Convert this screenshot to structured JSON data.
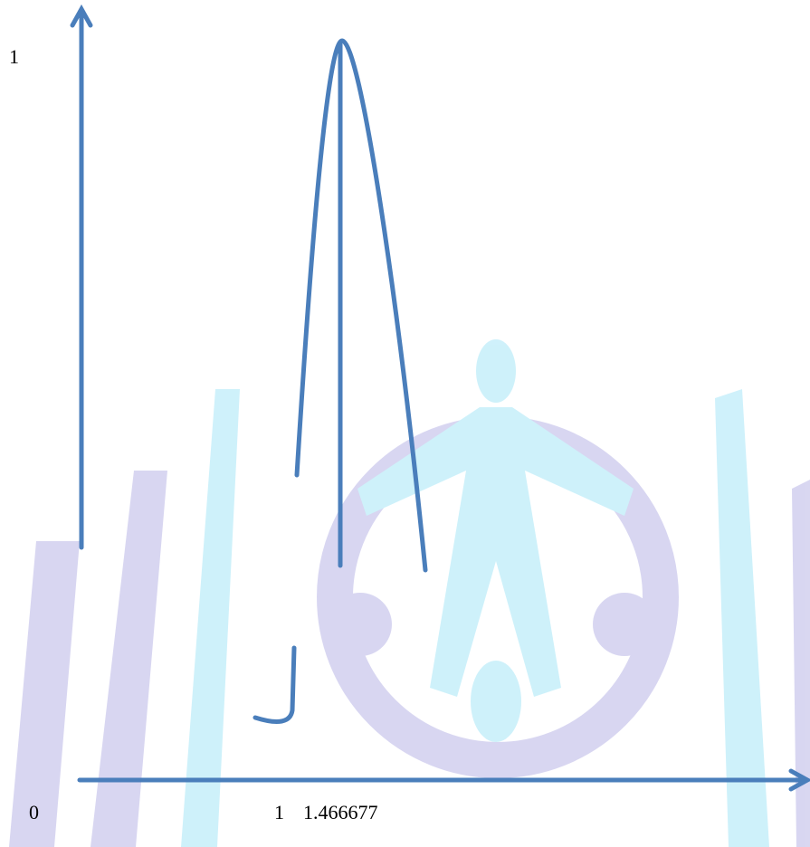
{
  "labels": {
    "y_top": "1",
    "origin": "0",
    "x_one": "1",
    "x_peak": "1.466677"
  }
}
